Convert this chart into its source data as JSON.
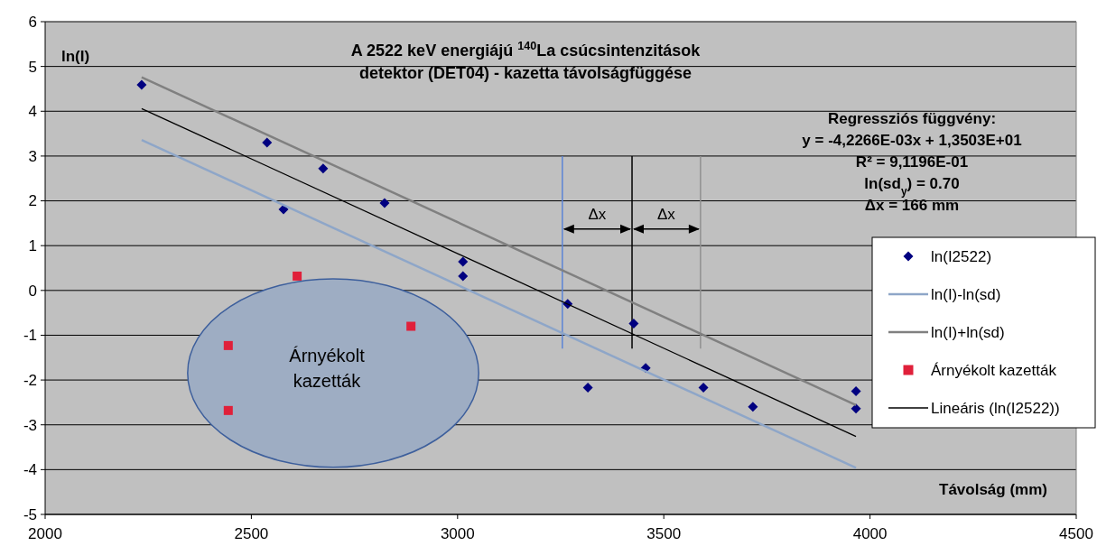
{
  "chart_data": {
    "type": "scatter",
    "title": "A 2522 keV energiájú $^{140}$La csúcsintenzitások\ndetektor (DET04) - kazetta távolságfüggése",
    "xlabel": "Távolság (mm)",
    "ylabel": "ln(I)",
    "xlim": [
      2000,
      4500
    ],
    "xticks": [
      2000,
      2500,
      3000,
      3500,
      4000,
      4500
    ],
    "ylim": [
      -5,
      6
    ],
    "yticks": [
      -5,
      -4,
      -3,
      -2,
      -1,
      0,
      1,
      2,
      3,
      4,
      5,
      6
    ],
    "grid": "y",
    "legend": "right",
    "series": [
      {
        "name": "ln(I2522)",
        "marker": "diamond",
        "color": "#000080",
        "x": [
          2234,
          2538,
          2578,
          2674,
          2823,
          3013,
          3013,
          3267,
          3316,
          3427,
          3456,
          3596,
          3716,
          3966,
          3966
        ],
        "values": [
          4.59,
          3.3,
          1.81,
          2.72,
          1.95,
          0.64,
          0.32,
          -0.3,
          -2.17,
          -0.74,
          -1.73,
          -2.17,
          -2.6,
          -2.25,
          -2.64
        ]
      },
      {
        "name": "ln(I)-ln(sd)",
        "type": "line",
        "marker": "none",
        "color": "#8ea6c8",
        "x": [
          2234,
          3966
        ],
        "values": [
          3.36,
          -3.96
        ]
      },
      {
        "name": "ln(I)+ln(sd)",
        "type": "line",
        "marker": "none",
        "color": "#808080",
        "x": [
          2234,
          3966
        ],
        "values": [
          4.76,
          -2.56
        ]
      },
      {
        "name": "Árnyékolt kazetták",
        "marker": "square",
        "color": "#e0203a",
        "x": [
          2611,
          2444,
          2444,
          2887
        ],
        "values": [
          0.32,
          -1.23,
          -2.68,
          -0.8
        ]
      },
      {
        "name": "Lineáris (ln(I2522))",
        "type": "line",
        "marker": "none",
        "color": "#000000",
        "x": [
          2234,
          3966
        ],
        "values": [
          4.06,
          -3.26
        ]
      }
    ],
    "ref_lines": [
      {
        "axis": "x",
        "value": 3254,
        "color": "#5b84d6"
      },
      {
        "axis": "x",
        "value": 3423,
        "color": "#000000"
      },
      {
        "axis": "x",
        "value": 3589,
        "color": "#909090"
      }
    ],
    "annotations": [
      "Regressziós  függvény:",
      "y = -4,2266E-03x  + 1,3503E+01",
      "R² = 9,1196E-01",
      "ln(sd$_{y}$) = 0.70",
      "Δx = 166 mm",
      "Δx",
      "Δx",
      "Árnyékolt\nkazetták"
    ]
  }
}
